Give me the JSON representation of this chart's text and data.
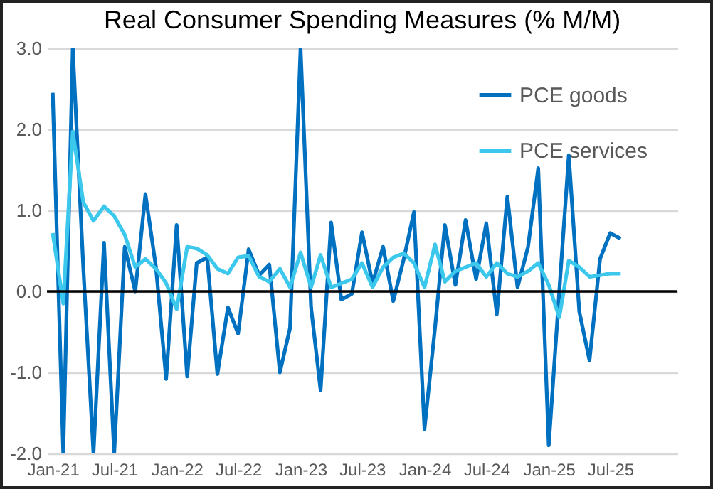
{
  "chart_data": {
    "type": "line",
    "title": "Real Consumer Spending Measures (% M/M)",
    "x": [
      "2021-01",
      "2021-02",
      "2021-03",
      "2021-04",
      "2021-05",
      "2021-06",
      "2021-07",
      "2021-08",
      "2021-09",
      "2021-10",
      "2021-11",
      "2021-12",
      "2022-01",
      "2022-02",
      "2022-03",
      "2022-04",
      "2022-05",
      "2022-06",
      "2022-07",
      "2022-08",
      "2022-09",
      "2022-10",
      "2022-11",
      "2022-12",
      "2023-01",
      "2023-02",
      "2023-03",
      "2023-04",
      "2023-05",
      "2023-06",
      "2023-07",
      "2023-08",
      "2023-09",
      "2023-10",
      "2023-11",
      "2023-12",
      "2024-01",
      "2024-02",
      "2024-03",
      "2024-04",
      "2024-05",
      "2024-06",
      "2024-07",
      "2024-08",
      "2024-09",
      "2024-10",
      "2024-11",
      "2024-12",
      "2025-01",
      "2025-02",
      "2025-03",
      "2025-04",
      "2025-05",
      "2025-06",
      "2025-07",
      "2025-08"
    ],
    "series": [
      {
        "name": "PCE goods",
        "color": "#0070c0",
        "values": [
          2.45,
          -2,
          3,
          0.3,
          -2,
          0.6,
          -2,
          0.55,
          0,
          1.2,
          0.3,
          -1.08,
          0.82,
          -1.05,
          0.35,
          0.42,
          -1.02,
          -0.2,
          -0.52,
          0.52,
          0.2,
          0.33,
          -1,
          -0.45,
          3,
          -0.2,
          -1.22,
          0.85,
          -0.1,
          -0.03,
          0.73,
          0.1,
          0.55,
          -0.12,
          0.4,
          0.98,
          -1.7,
          -0.45,
          0.82,
          0.08,
          0.88,
          0.15,
          0.84,
          -0.28,
          1.17,
          0.05,
          0.55,
          1.52,
          -1.9,
          0,
          1.68,
          -0.25,
          -0.85,
          0.4,
          0.72,
          0.65
        ]
      },
      {
        "name": "PCE services",
        "color": "#3cc8ec",
        "values": [
          0.72,
          -0.15,
          1.97,
          1.1,
          0.87,
          1.05,
          0.93,
          0.7,
          0.3,
          0.4,
          0.28,
          0.1,
          -0.22,
          0.55,
          0.53,
          0.45,
          0.28,
          0.22,
          0.42,
          0.44,
          0.18,
          0.12,
          0.28,
          0.05,
          0.48,
          0.05,
          0.45,
          0.05,
          0.1,
          0.15,
          0.35,
          0.05,
          0.3,
          0.42,
          0.47,
          0.35,
          0.05,
          0.58,
          0.12,
          0.25,
          0.3,
          0.35,
          0.18,
          0.35,
          0.22,
          0.18,
          0.25,
          0.35,
          0.08,
          -0.32,
          0.38,
          0.3,
          0.18,
          0.2,
          0.22,
          0.22
        ]
      }
    ],
    "xlim": [
      "2020-12-15",
      "2026-01-15"
    ],
    "xticks": [
      {
        "value": "2021-01",
        "label": "Jan-21"
      },
      {
        "value": "2021-07",
        "label": "Jul-21"
      },
      {
        "value": "2022-01",
        "label": "Jan-22"
      },
      {
        "value": "2022-07",
        "label": "Jul-22"
      },
      {
        "value": "2023-01",
        "label": "Jan-23"
      },
      {
        "value": "2023-07",
        "label": "Jul-23"
      },
      {
        "value": "2024-01",
        "label": "Jan-24"
      },
      {
        "value": "2024-07",
        "label": "Jul-24"
      },
      {
        "value": "2025-01",
        "label": "Jan-25"
      },
      {
        "value": "2025-07",
        "label": "Jul-25"
      }
    ],
    "ylim": [
      -2,
      3
    ],
    "yticks": [
      {
        "value": -2,
        "label": "-2.0"
      },
      {
        "value": -1,
        "label": "-1.0"
      },
      {
        "value": 0,
        "label": "0.0"
      },
      {
        "value": 1,
        "label": "1.0"
      },
      {
        "value": 2,
        "label": "2.0"
      },
      {
        "value": 3,
        "label": "3.0"
      }
    ],
    "ref_lines": [
      {
        "axis": "y",
        "value": 0,
        "color": "#000000"
      }
    ],
    "grid": "y",
    "legend": "top right"
  }
}
